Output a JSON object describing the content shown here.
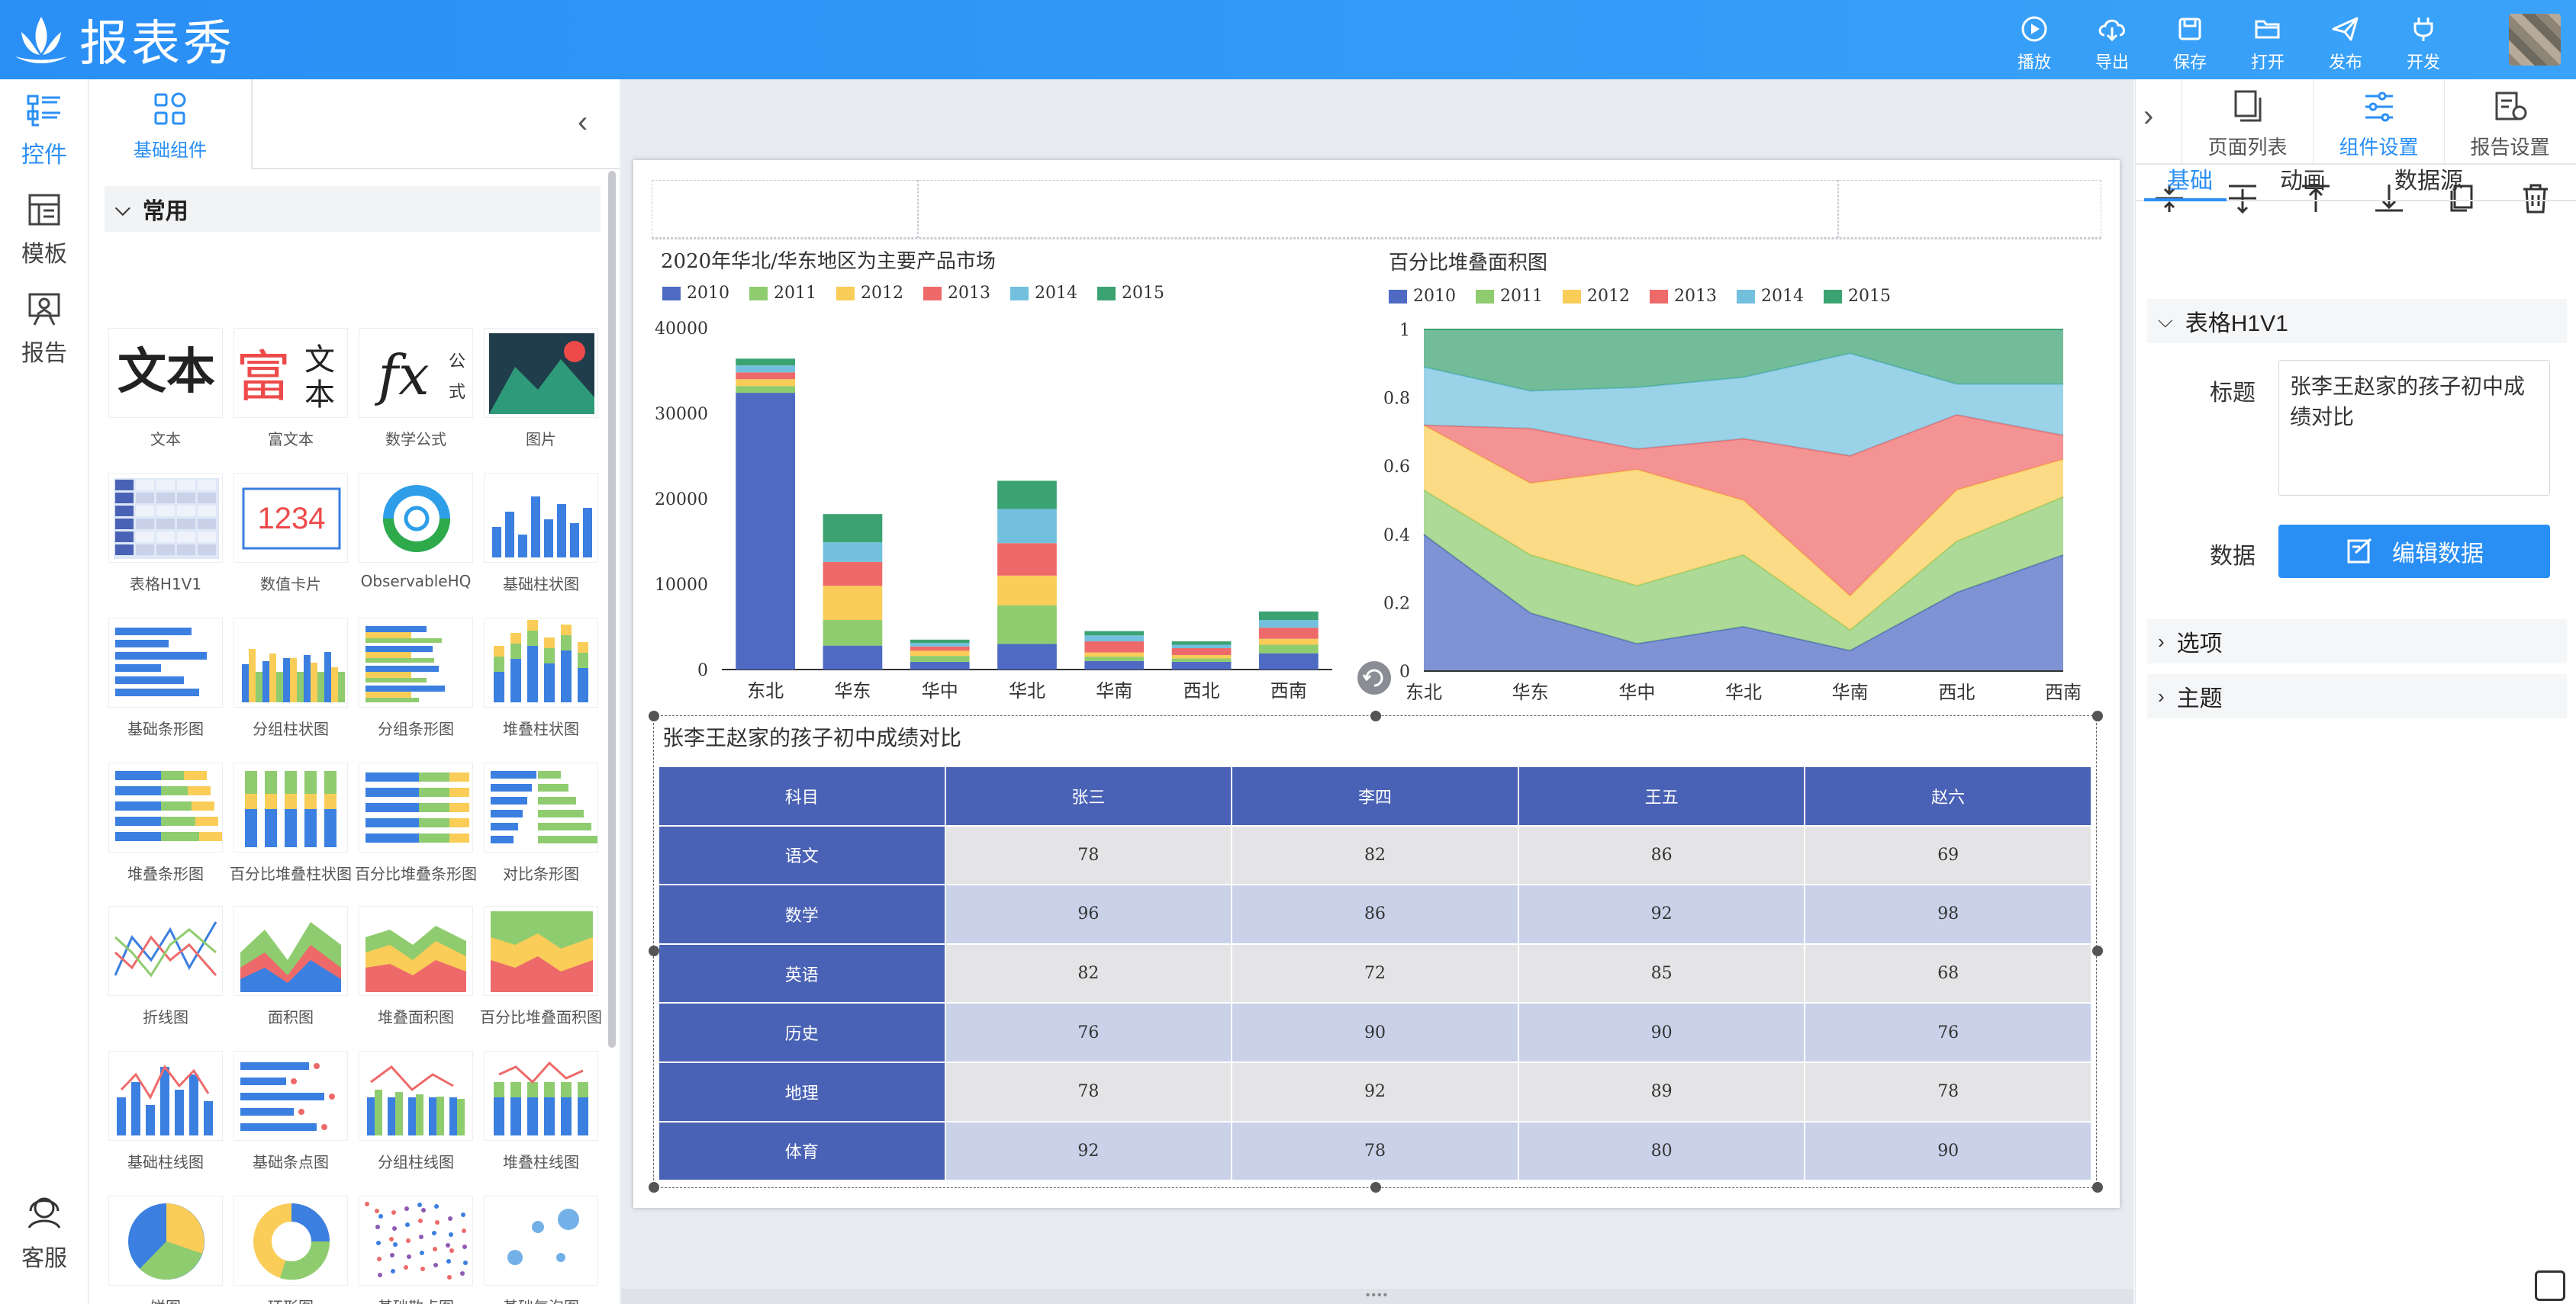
{
  "app": {
    "title": "报表秀"
  },
  "toolbar": [
    {
      "label": "播放",
      "icon": "play-icon"
    },
    {
      "label": "导出",
      "icon": "export-icon"
    },
    {
      "label": "保存",
      "icon": "save-icon"
    },
    {
      "label": "打开",
      "icon": "open-icon"
    },
    {
      "label": "发布",
      "icon": "publish-icon"
    },
    {
      "label": "开发",
      "icon": "plug-icon"
    }
  ],
  "left_nav": [
    {
      "label": "控件",
      "icon": "widgets-icon",
      "active": true
    },
    {
      "label": "模板",
      "icon": "template-icon",
      "active": false
    },
    {
      "label": "报告",
      "icon": "report-icon",
      "active": false
    }
  ],
  "service_label": "客服",
  "component_panel": {
    "tab_label": "基础组件",
    "group_label": "常用",
    "items": [
      "文本",
      "富文本",
      "数学公式",
      "图片",
      "表格H1V1",
      "数值卡片",
      "ObservableHQ",
      "基础柱状图",
      "基础条形图",
      "分组柱状图",
      "分组条形图",
      "堆叠柱状图",
      "堆叠条形图",
      "百分比堆叠柱状图",
      "百分比堆叠条形图",
      "对比条形图",
      "折线图",
      "面积图",
      "堆叠面积图",
      "百分比堆叠面积图",
      "基础柱线图",
      "基础条点图",
      "分组柱线图",
      "堆叠柱线图",
      "饼图",
      "环形图",
      "基础散点图",
      "基础气泡图"
    ],
    "thumb_texts": {
      "text": "文本",
      "rich1": "富",
      "rich2": "文",
      "rich3": "本",
      "formula": "fx",
      "formula_sub1": "公",
      "formula_sub2": "式",
      "card": "1234"
    }
  },
  "colors": {
    "accent": "#2a8ff5",
    "header_blue": "#4a62b5",
    "series": [
      "#4e6ac3",
      "#8fcc6f",
      "#f9cd58",
      "#ee6a6a",
      "#73c0de",
      "#3ba272"
    ]
  },
  "chart_data": [
    {
      "type": "bar",
      "stacked": true,
      "title": "2020年华北/华东地区为主要产品市场",
      "categories": [
        "东北",
        "华东",
        "华中",
        "华北",
        "华南",
        "西北",
        "西南"
      ],
      "ylim": [
        0,
        40000
      ],
      "yticks": [
        "0",
        "10000",
        "20000",
        "30000",
        "40000"
      ],
      "series": [
        {
          "name": "2010",
          "values": [
            32400,
            2800,
            900,
            3000,
            1000,
            900,
            1900
          ]
        },
        {
          "name": "2011",
          "values": [
            800,
            3000,
            700,
            4500,
            500,
            400,
            1000
          ]
        },
        {
          "name": "2012",
          "values": [
            800,
            4000,
            600,
            3500,
            500,
            400,
            700
          ]
        },
        {
          "name": "2013",
          "values": [
            800,
            2800,
            500,
            3800,
            1300,
            800,
            1300
          ]
        },
        {
          "name": "2014",
          "values": [
            800,
            2300,
            400,
            4000,
            700,
            400,
            900
          ]
        },
        {
          "name": "2015",
          "values": [
            800,
            3300,
            400,
            3300,
            500,
            400,
            1000
          ]
        }
      ]
    },
    {
      "type": "area",
      "stacked": "percent",
      "title": "百分比堆叠面积图",
      "categories": [
        "东北",
        "华东",
        "华中",
        "华北",
        "华南",
        "西北",
        "西南"
      ],
      "ylim": [
        0,
        1
      ],
      "yticks": [
        "0",
        "0.2",
        "0.4",
        "0.6",
        "0.8",
        "1"
      ],
      "series": [
        {
          "name": "2010",
          "values": [
            0.4,
            0.17,
            0.08,
            0.13,
            0.06,
            0.23,
            0.34
          ]
        },
        {
          "name": "2011",
          "values": [
            0.13,
            0.17,
            0.17,
            0.21,
            0.06,
            0.15,
            0.17
          ]
        },
        {
          "name": "2012",
          "values": [
            0.19,
            0.21,
            0.34,
            0.16,
            0.1,
            0.15,
            0.11
          ]
        },
        {
          "name": "2013",
          "values": [
            0.0,
            0.16,
            0.06,
            0.18,
            0.41,
            0.22,
            0.07
          ]
        },
        {
          "name": "2014",
          "values": [
            0.17,
            0.11,
            0.18,
            0.18,
            0.3,
            0.09,
            0.15
          ]
        },
        {
          "name": "2015",
          "values": [
            0.11,
            0.18,
            0.17,
            0.14,
            0.07,
            0.16,
            0.16
          ]
        }
      ]
    },
    {
      "type": "table",
      "title": "张李王赵家的孩子初中成绩对比",
      "columns": [
        "科目",
        "张三",
        "李四",
        "王五",
        "赵六"
      ],
      "rows": [
        [
          "语文",
          "78",
          "82",
          "86",
          "69"
        ],
        [
          "数学",
          "96",
          "86",
          "92",
          "98"
        ],
        [
          "英语",
          "82",
          "72",
          "85",
          "68"
        ],
        [
          "历史",
          "76",
          "90",
          "90",
          "76"
        ],
        [
          "地理",
          "78",
          "92",
          "89",
          "78"
        ],
        [
          "体育",
          "92",
          "78",
          "80",
          "90"
        ]
      ]
    }
  ],
  "right_panel": {
    "tabs": [
      {
        "label": "页面列表",
        "icon": "pages-icon",
        "active": false
      },
      {
        "label": "组件设置",
        "icon": "sliders-icon",
        "active": true
      },
      {
        "label": "报告设置",
        "icon": "report-settings-icon",
        "active": false
      }
    ],
    "sub_tabs": [
      "基础",
      "动画",
      "数据源"
    ],
    "section_title": "表格H1V1",
    "title_label": "标题",
    "title_value": "张李王赵家的孩子初中成绩对比",
    "data_label": "数据",
    "edit_button": "编辑数据",
    "sections": [
      "选项",
      "主题"
    ]
  }
}
